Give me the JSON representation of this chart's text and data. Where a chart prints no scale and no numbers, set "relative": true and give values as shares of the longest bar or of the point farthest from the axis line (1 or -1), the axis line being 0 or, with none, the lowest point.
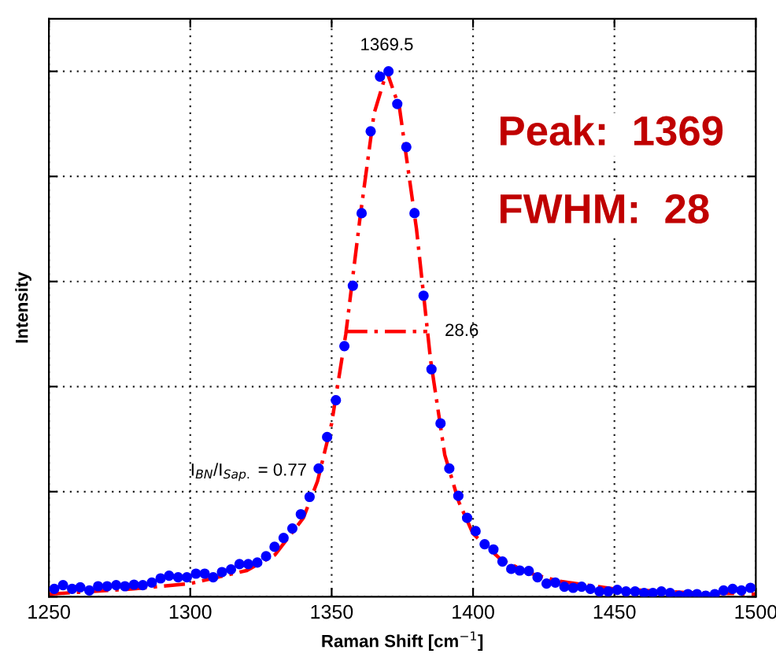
{
  "chart_data": {
    "type": "scatter",
    "relative": true,
    "xlabel": "Raman Shift [cm$^{−1}$]",
    "ylabel": "Intensity",
    "xlim": [
      1250,
      1500
    ],
    "xticks": [
      1250,
      1300,
      1350,
      1400,
      1450,
      1500
    ],
    "grid": true,
    "tick_labels": "x",
    "series": [
      {
        "color": "#0000ff",
        "marker": "circle",
        "x": [
          1251.9,
          1255.0,
          1258.2,
          1261.1,
          1264.3,
          1267.4,
          1270.6,
          1273.8,
          1276.9,
          1280.1,
          1283.2,
          1286.4,
          1289.5,
          1292.5,
          1295.7,
          1298.8,
          1302.0,
          1305.1,
          1308.1,
          1311.2,
          1314.4,
          1317.4,
          1320.5,
          1323.7,
          1326.8,
          1329.8,
          1333.0,
          1336.1,
          1339.1,
          1342.2,
          1345.4,
          1348.4,
          1351.5,
          1354.5,
          1357.5,
          1360.6,
          1363.8,
          1367.1,
          1370.1,
          1373.2,
          1376.4,
          1379.3,
          1382.5,
          1385.3,
          1388.5,
          1391.6,
          1394.8,
          1397.9,
          1400.9,
          1404.1,
          1407.2,
          1410.4,
          1413.5,
          1416.5,
          1419.7,
          1422.8,
          1426.0,
          1429.1,
          1432.3,
          1435.4,
          1438.4,
          1441.5,
          1444.7,
          1447.8,
          1451.0,
          1454.1,
          1457.3,
          1460.5,
          1463.6,
          1466.6,
          1469.7,
          1472.9,
          1476.0,
          1479.2,
          1482.3,
          1485.5,
          1488.6,
          1491.8,
          1494.9,
          1498.1
        ],
        "values": [
          0.015,
          0.022,
          0.015,
          0.018,
          0.012,
          0.02,
          0.02,
          0.022,
          0.02,
          0.023,
          0.022,
          0.027,
          0.035,
          0.04,
          0.037,
          0.037,
          0.044,
          0.044,
          0.037,
          0.047,
          0.052,
          0.062,
          0.062,
          0.065,
          0.077,
          0.095,
          0.112,
          0.13,
          0.157,
          0.19,
          0.244,
          0.304,
          0.374,
          0.477,
          0.592,
          0.73,
          0.886,
          0.99,
          1.0,
          0.938,
          0.856,
          0.73,
          0.573,
          0.433,
          0.33,
          0.244,
          0.192,
          0.15,
          0.125,
          0.1,
          0.09,
          0.067,
          0.053,
          0.05,
          0.049,
          0.037,
          0.025,
          0.027,
          0.019,
          0.017,
          0.019,
          0.015,
          0.01,
          0.01,
          0.013,
          0.01,
          0.01,
          0.007,
          0.007,
          0.01,
          0.007,
          0.002,
          0.005,
          0.005,
          0.002,
          0.005,
          0.012,
          0.015,
          0.012,
          0.017
        ]
      },
      {
        "type": "line",
        "color": "#ff0000",
        "line_style": "dashed",
        "x": [
          1250,
          1280,
          1300,
          1320,
          1330,
          1340,
          1345,
          1350,
          1355,
          1360,
          1365,
          1369.5,
          1374,
          1380,
          1385,
          1390,
          1395,
          1400,
          1410,
          1420,
          1430,
          1450,
          1475,
          1500
        ],
        "values": [
          0.005,
          0.015,
          0.025,
          0.05,
          0.08,
          0.15,
          0.22,
          0.33,
          0.5,
          0.72,
          0.92,
          1.0,
          0.93,
          0.7,
          0.45,
          0.27,
          0.18,
          0.12,
          0.07,
          0.045,
          0.03,
          0.015,
          0.008,
          0.005
        ]
      },
      {
        "type": "line",
        "color": "#ff0000",
        "line_style": "dashed",
        "x": [
          1355.2,
          1383.8
        ],
        "values": [
          0.505,
          0.505
        ]
      }
    ],
    "annotations": [
      {
        "text": "1369.5",
        "x": 1369.5,
        "y": 1.0
      },
      {
        "text": "28.6",
        "x": 1383.8,
        "y": 0.505
      },
      "I$_{BN}$/I$_{Sap.}$ = 0.77",
      "Peak:  1369",
      "FWHM:  28"
    ]
  }
}
